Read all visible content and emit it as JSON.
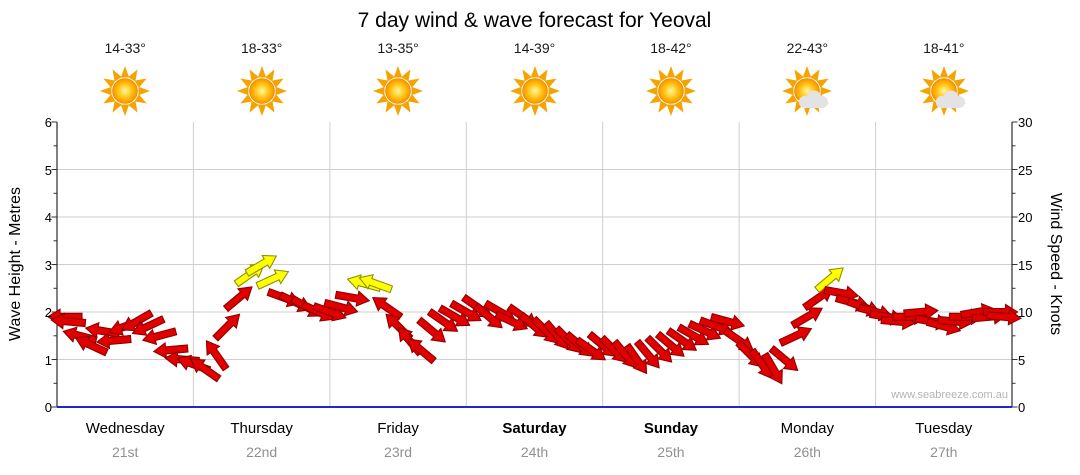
{
  "title": "7 day wind & wave forecast for Yeoval",
  "watermark": "www.seabreeze.com.au",
  "axes": {
    "left_title": "Wave Height - Metres",
    "right_title": "Wind Speed - Knots",
    "left_ticks": [
      0,
      1,
      2,
      3,
      4,
      5,
      6
    ],
    "right_ticks": [
      0,
      5,
      10,
      15,
      20,
      25,
      30
    ]
  },
  "days": [
    {
      "name": "Wednesday",
      "date": "21st",
      "temp": "14-33°",
      "icon": "sun",
      "weekend": false
    },
    {
      "name": "Thursday",
      "date": "22nd",
      "temp": "18-33°",
      "icon": "sun",
      "weekend": false
    },
    {
      "name": "Friday",
      "date": "23rd",
      "temp": "13-35°",
      "icon": "sun",
      "weekend": false
    },
    {
      "name": "Saturday",
      "date": "24th",
      "temp": "14-39°",
      "icon": "sun",
      "weekend": true
    },
    {
      "name": "Sunday",
      "date": "25th",
      "temp": "18-42°",
      "icon": "sun",
      "weekend": true
    },
    {
      "name": "Monday",
      "date": "26th",
      "temp": "22-43°",
      "icon": "sun_cloud",
      "weekend": false
    },
    {
      "name": "Tuesday",
      "date": "27th",
      "temp": "18-41°",
      "icon": "sun_cloud",
      "weekend": false
    }
  ],
  "chart_data": {
    "type": "scatter",
    "title": "7 day wind & wave forecast for Yeoval",
    "x_axis": {
      "unit": "hours_from_start",
      "range": [
        0,
        168
      ],
      "day_labels": [
        "Wednesday 21st",
        "Thursday 22nd",
        "Friday 23rd",
        "Saturday 24th",
        "Sunday 25th",
        "Monday 26th",
        "Tuesday 27th"
      ]
    },
    "y_left": {
      "label": "Wave Height - Metres",
      "range": [
        0,
        6
      ]
    },
    "y_right": {
      "label": "Wind Speed - Knots",
      "range": [
        0,
        30
      ]
    },
    "wind_arrows": {
      "point_format": "[hour, speed_knots, direction_deg_0_is_east_clockwise]",
      "yellow_min_knots": 13,
      "points": [
        [
          0,
          9.5,
          180
        ],
        [
          2,
          9,
          185
        ],
        [
          4,
          7.5,
          195
        ],
        [
          6,
          6.5,
          205
        ],
        [
          8,
          8,
          190
        ],
        [
          10,
          7,
          175
        ],
        [
          12,
          8.5,
          160
        ],
        [
          14,
          9,
          150
        ],
        [
          16,
          8.5,
          155
        ],
        [
          18,
          7.5,
          165
        ],
        [
          20,
          6,
          175
        ],
        [
          22,
          5,
          185
        ],
        [
          24,
          4.5,
          200
        ],
        [
          26,
          4,
          215
        ],
        [
          28,
          5.5,
          235
        ],
        [
          30,
          8.5,
          315
        ],
        [
          32,
          11.5,
          320
        ],
        [
          34,
          14,
          325
        ],
        [
          36,
          15,
          330
        ],
        [
          38,
          13.5,
          335
        ],
        [
          40,
          11.5,
          20
        ],
        [
          42,
          11,
          25
        ],
        [
          44,
          10.5,
          30
        ],
        [
          46,
          10,
          25
        ],
        [
          48,
          10,
          20
        ],
        [
          50,
          10.5,
          15
        ],
        [
          52,
          11.5,
          10
        ],
        [
          54,
          13,
          195
        ],
        [
          56,
          13,
          200
        ],
        [
          58,
          10.5,
          215
        ],
        [
          60,
          8.5,
          225
        ],
        [
          62,
          7,
          230
        ],
        [
          64,
          6,
          220
        ],
        [
          66,
          8,
          40
        ],
        [
          68,
          9,
          35
        ],
        [
          70,
          9.5,
          30
        ],
        [
          72,
          10,
          30
        ],
        [
          74,
          10.5,
          35
        ],
        [
          76,
          9.5,
          40
        ],
        [
          78,
          10,
          30
        ],
        [
          80,
          9,
          25
        ],
        [
          82,
          9.5,
          35
        ],
        [
          84,
          8.5,
          40
        ],
        [
          86,
          8,
          45
        ],
        [
          88,
          7.5,
          50
        ],
        [
          90,
          7,
          45
        ],
        [
          92,
          6.5,
          40
        ],
        [
          94,
          6,
          35
        ],
        [
          96,
          6.5,
          40
        ],
        [
          98,
          6,
          45
        ],
        [
          100,
          5.5,
          50
        ],
        [
          102,
          5,
          55
        ],
        [
          104,
          5.5,
          50
        ],
        [
          106,
          6,
          45
        ],
        [
          108,
          6.5,
          40
        ],
        [
          110,
          7,
          35
        ],
        [
          112,
          7.5,
          30
        ],
        [
          114,
          8,
          25
        ],
        [
          116,
          8.5,
          20
        ],
        [
          118,
          9,
          15
        ],
        [
          120,
          7,
          35
        ],
        [
          122,
          5.5,
          45
        ],
        [
          124,
          4.5,
          55
        ],
        [
          126,
          4,
          60
        ],
        [
          128,
          5,
          40
        ],
        [
          130,
          7.5,
          335
        ],
        [
          132,
          9.5,
          330
        ],
        [
          134,
          11.5,
          325
        ],
        [
          136,
          13.5,
          320
        ],
        [
          138,
          12,
          10
        ],
        [
          140,
          11,
          15
        ],
        [
          142,
          10.5,
          20
        ],
        [
          144,
          10,
          15
        ],
        [
          146,
          9.5,
          10
        ],
        [
          148,
          9,
          5
        ],
        [
          150,
          9.5,
          0
        ],
        [
          152,
          10,
          355
        ],
        [
          154,
          9,
          10
        ],
        [
          156,
          8.5,
          15
        ],
        [
          158,
          9,
          5
        ],
        [
          160,
          9.5,
          0
        ],
        [
          162,
          10,
          350
        ],
        [
          164,
          9.5,
          355
        ],
        [
          166,
          10,
          0
        ],
        [
          168,
          9.5,
          5
        ]
      ]
    }
  },
  "colors": {
    "arrow_red": "#E00000",
    "arrow_red_outline": "#8F0000",
    "arrow_yellow": "#FFFF00",
    "arrow_yellow_outline": "#8F8F00",
    "grid": "#CFCFCF",
    "axis": "#000000",
    "bottom_axis": "#2424CC",
    "date_text": "#909090",
    "watermark_text": "#B4B4B4"
  }
}
